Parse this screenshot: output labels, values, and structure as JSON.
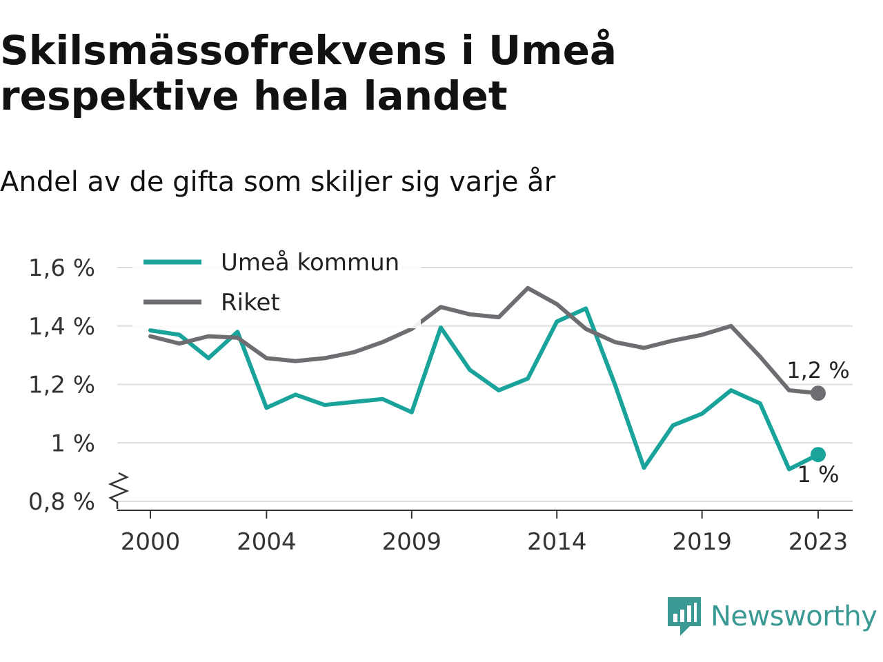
{
  "header": {
    "title": "Skilsmässofrekvens i Umeå respektive hela landet",
    "subtitle": "Andel av de gifta som skiljer sig varje år"
  },
  "brand": {
    "name": "Newsworthy",
    "icon": "newsworthy-logo-icon",
    "color": "#3a9a93"
  },
  "chart_data": {
    "type": "line",
    "x": [
      2000,
      2001,
      2002,
      2003,
      2004,
      2005,
      2006,
      2007,
      2008,
      2009,
      2010,
      2011,
      2012,
      2013,
      2014,
      2015,
      2016,
      2017,
      2018,
      2019,
      2020,
      2021,
      2022,
      2023
    ],
    "x_ticks": [
      2000,
      2004,
      2009,
      2014,
      2019,
      2023
    ],
    "x_tick_labels": [
      "2000",
      "2004",
      "2009",
      "2014",
      "2019",
      "2023"
    ],
    "y_ticks": [
      0.8,
      1.0,
      1.2,
      1.4,
      1.6
    ],
    "y_tick_labels": [
      "0,8 %",
      "1 %",
      "1,2 %",
      "1,4 %",
      "1,6 %"
    ],
    "ylim": [
      0.8,
      1.6
    ],
    "y_axis_break": true,
    "grid": "horizontal",
    "legend_position": "top-left",
    "series": [
      {
        "name": "Umeå kommun",
        "color": "#1aa39a",
        "values": [
          1.385,
          1.37,
          1.29,
          1.38,
          1.12,
          1.165,
          1.13,
          1.14,
          1.15,
          1.105,
          1.395,
          1.25,
          1.18,
          1.22,
          1.415,
          1.46,
          1.2,
          0.915,
          1.06,
          1.1,
          1.18,
          1.135,
          0.91,
          0.96
        ],
        "end_label": "1 %"
      },
      {
        "name": "Riket",
        "color": "#6e6d72",
        "values": [
          1.365,
          1.34,
          1.365,
          1.36,
          1.29,
          1.28,
          1.29,
          1.31,
          1.345,
          1.39,
          1.465,
          1.44,
          1.43,
          1.53,
          1.475,
          1.39,
          1.345,
          1.325,
          1.35,
          1.37,
          1.4,
          1.295,
          1.18,
          1.17
        ],
        "end_label": "1,2 %"
      }
    ]
  }
}
